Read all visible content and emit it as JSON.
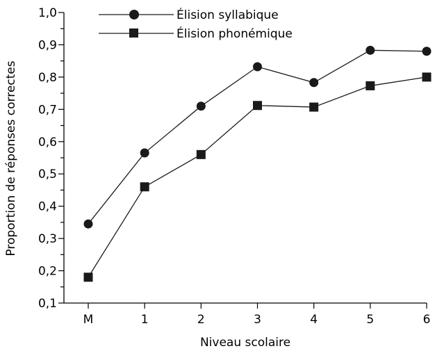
{
  "chart_data": {
    "type": "line",
    "categories": [
      "M",
      "1",
      "2",
      "3",
      "4",
      "5",
      "6"
    ],
    "series": [
      {
        "name": "Élision syllabique",
        "marker": "circle",
        "values": [
          0.345,
          0.565,
          0.71,
          0.832,
          0.783,
          0.883,
          0.88
        ]
      },
      {
        "name": "Élision phonémique",
        "marker": "square",
        "values": [
          0.18,
          0.46,
          0.56,
          0.712,
          0.707,
          0.773,
          0.8
        ]
      }
    ],
    "title": "",
    "xlabel": "Niveau scolaire",
    "ylabel": "Proportion de réponses correctes",
    "ylim": [
      0.1,
      1.0
    ],
    "yticks": [
      "0,1",
      "0,2",
      "0,3",
      "0,4",
      "0,5",
      "0,6",
      "0,7",
      "0,8",
      "0,9",
      "1,0"
    ],
    "grid": false,
    "legend_position": "top-left",
    "colors": {
      "line": "#1a1a1a",
      "marker": "#1a1a1a"
    }
  }
}
